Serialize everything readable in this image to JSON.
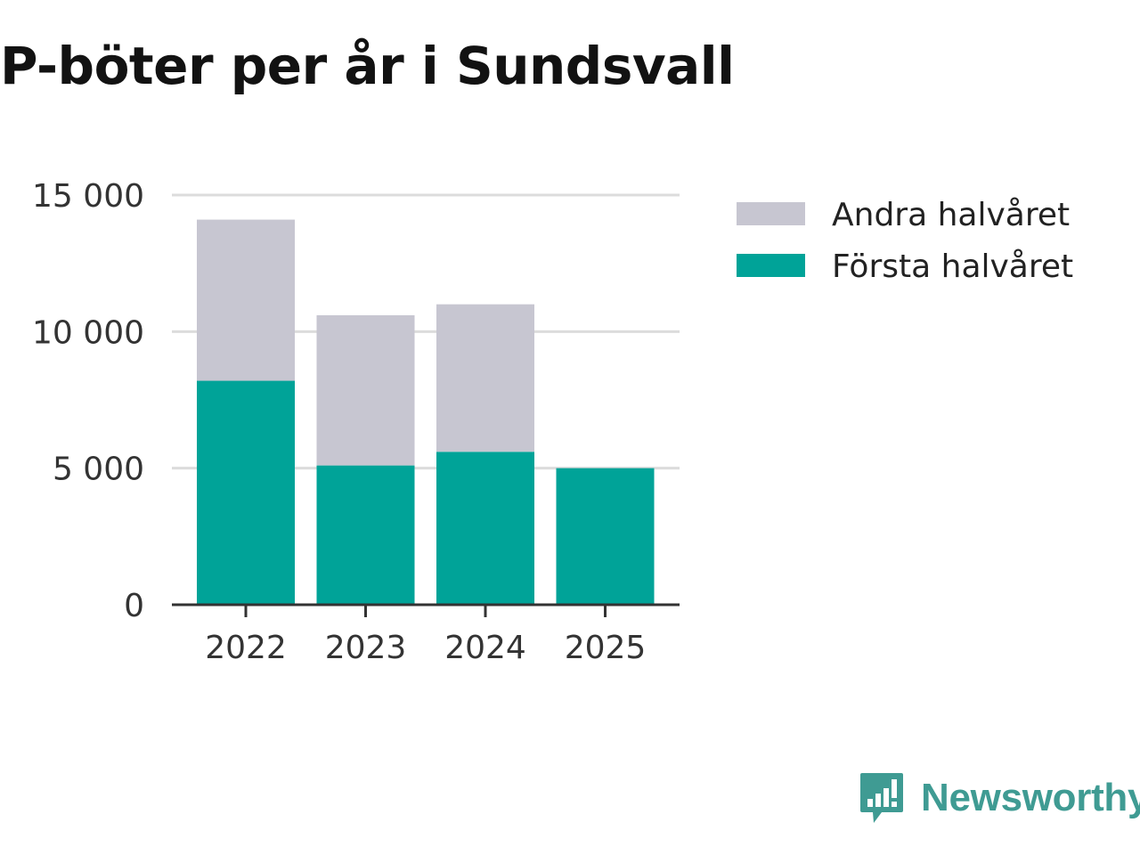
{
  "chart_data": {
    "type": "bar",
    "stacked": true,
    "title": "P-böter per år i Sundsvall",
    "categories": [
      "2022",
      "2023",
      "2024",
      "2025"
    ],
    "series": [
      {
        "name": "Första halvåret",
        "values": [
          8200,
          5100,
          5600,
          5000
        ],
        "color": "#00a398"
      },
      {
        "name": "Andra halvåret",
        "values": [
          5900,
          5500,
          5400,
          0
        ],
        "color": "#c7c6d1"
      }
    ],
    "legend_order": [
      "Andra halvåret",
      "Första halvåret"
    ],
    "y_ticks": [
      0,
      5000,
      10000,
      15000
    ],
    "y_tick_labels": [
      "0",
      "5 000",
      "10 000",
      "15 000"
    ],
    "ylim": [
      0,
      15000
    ],
    "xlabel": "",
    "ylabel": "",
    "grid": true,
    "legend_position": "top-right"
  },
  "branding": {
    "logo_text": "Newsworthy",
    "logo_color": "#3f9b93"
  }
}
